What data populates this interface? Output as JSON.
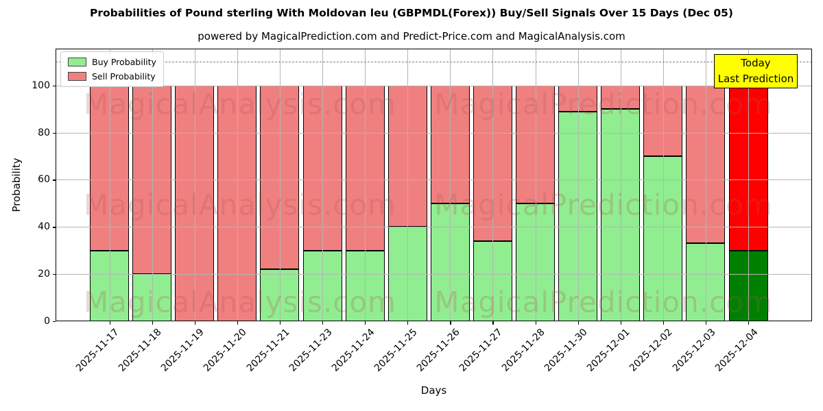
{
  "header": {
    "title": "Probabilities of Pound sterling With Moldovan leu (GBPMDL(Forex)) Buy/Sell Signals Over 15 Days (Dec 05)",
    "subtitle": "powered by MagicalPrediction.com and Predict-Price.com and MagicalAnalysis.com"
  },
  "legend": {
    "items": [
      {
        "label": "Buy Probability",
        "color": "#90ee90"
      },
      {
        "label": "Sell Probability",
        "color": "#f08080"
      }
    ]
  },
  "annotation": {
    "line1": "Today",
    "line2": "Last Prediction",
    "bg_color": "#ffff00"
  },
  "watermarks": {
    "left_text": "MagicalAnalysis.com",
    "right_text": "MagicalPrediction.com"
  },
  "chart_data": {
    "type": "bar",
    "stacked": true,
    "title": "Probabilities of Pound sterling With Moldovan leu (GBPMDL(Forex)) Buy/Sell Signals Over 15 Days (Dec 05)",
    "xlabel": "Days",
    "ylabel": "Probability",
    "categories": [
      "2025-11-17",
      "2025-11-18",
      "2025-11-19",
      "2025-11-20",
      "2025-11-21",
      "2025-11-23",
      "2025-11-24",
      "2025-11-25",
      "2025-11-26",
      "2025-11-27",
      "2025-11-28",
      "2025-11-30",
      "2025-12-01",
      "2025-12-02",
      "2025-12-03",
      "2025-12-04"
    ],
    "series": [
      {
        "name": "Buy Probability",
        "color": "#90ee90",
        "values": [
          30,
          20,
          0,
          0,
          22,
          30,
          30,
          40,
          50,
          34,
          50,
          89,
          90,
          70,
          33,
          30
        ]
      },
      {
        "name": "Sell Probability",
        "color": "#f08080",
        "values": [
          70,
          80,
          100,
          100,
          78,
          70,
          70,
          60,
          50,
          66,
          50,
          11,
          10,
          30,
          67,
          69
        ]
      }
    ],
    "today_index": 15,
    "today_colors": {
      "buy": "#008000",
      "sell": "#ff0000"
    },
    "yticks": [
      0,
      20,
      40,
      60,
      80,
      100
    ],
    "ylim": [
      0,
      115.6
    ],
    "dashed_line_y": 110,
    "grid": true,
    "legend_position": "upper left"
  }
}
